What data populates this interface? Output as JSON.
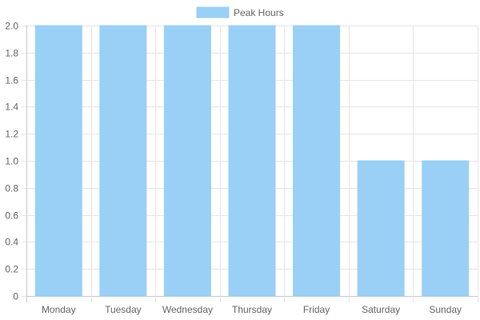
{
  "chart_data": {
    "type": "bar",
    "categories": [
      "Monday",
      "Tuesday",
      "Wednesday",
      "Thursday",
      "Friday",
      "Saturday",
      "Sunday"
    ],
    "series": [
      {
        "name": "Peak Hours",
        "values": [
          2,
          2,
          2,
          2,
          2,
          1,
          1
        ]
      }
    ],
    "ylim": [
      0,
      2
    ],
    "y_ticks": [
      "0",
      "0.2",
      "0.4",
      "0.6",
      "0.8",
      "1.0",
      "1.2",
      "1.4",
      "1.6",
      "1.8",
      "2.0"
    ],
    "grid": true,
    "legend": "top-center",
    "colors": {
      "bar_fill": "#9ad0f5",
      "bar_stroke": "#9ad0f5",
      "grid": "#e6e6e6",
      "axis": "#c8c8c8",
      "text": "#666666"
    }
  }
}
